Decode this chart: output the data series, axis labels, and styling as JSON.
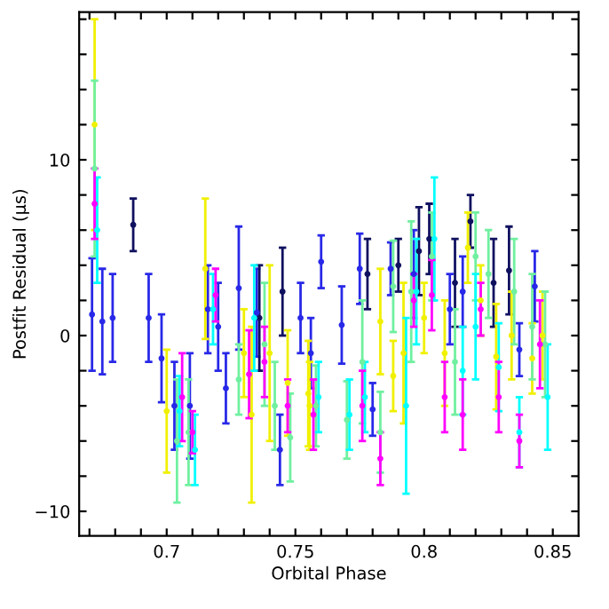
{
  "chart_data": {
    "type": "scatter",
    "xlabel": "Orbital Phase",
    "ylabel": "Postfit Residual (μs)",
    "xlim": [
      0.666,
      0.86
    ],
    "ylim": [
      -11.4,
      18.4
    ],
    "xticks": [
      {
        "value": 0.67,
        "label": null
      },
      {
        "value": 0.68,
        "label": null
      },
      {
        "value": 0.69,
        "label": null
      },
      0.7,
      {
        "value": 0.71,
        "label": null
      },
      {
        "value": 0.72,
        "label": null
      },
      {
        "value": 0.73,
        "label": null
      },
      {
        "value": 0.74,
        "label": null
      },
      0.75,
      {
        "value": 0.76,
        "label": null
      },
      {
        "value": 0.77,
        "label": null
      },
      {
        "value": 0.78,
        "label": null
      },
      {
        "value": 0.79,
        "label": null
      },
      0.8,
      {
        "value": 0.81,
        "label": null
      },
      {
        "value": 0.82,
        "label": null
      },
      {
        "value": 0.83,
        "label": null
      },
      {
        "value": 0.84,
        "label": null
      },
      0.85
    ],
    "yticks": [
      {
        "value": -10,
        "label": "−10"
      },
      {
        "value": -8,
        "label": null
      },
      {
        "value": -6,
        "label": null
      },
      {
        "value": -4,
        "label": null
      },
      {
        "value": -2,
        "label": null
      },
      0,
      {
        "value": 2,
        "label": null
      },
      {
        "value": 4,
        "label": null
      },
      {
        "value": 6,
        "label": null
      },
      {
        "value": 8,
        "label": null
      },
      10,
      {
        "value": 12,
        "label": null
      },
      {
        "value": 14,
        "label": null
      },
      {
        "value": 16,
        "label": null
      },
      {
        "value": 18,
        "label": null
      }
    ],
    "grid": false,
    "legend": false,
    "marker": "circle",
    "series": [
      {
        "color": "#2828e8",
        "x": [
          0.671,
          0.675,
          0.679,
          0.693,
          0.698,
          0.703,
          0.709,
          0.716,
          0.72,
          0.723,
          0.728,
          0.735,
          0.744,
          0.752,
          0.756,
          0.76,
          0.768,
          0.775,
          0.78,
          0.787,
          0.796,
          0.81,
          0.815,
          0.837,
          0.843
        ],
        "values": [
          1.2,
          0.8,
          1,
          1,
          -1.3,
          -4,
          -4,
          1.5,
          0.5,
          -3,
          2.7,
          1.3,
          -6.5,
          1,
          -1,
          4.2,
          0.6,
          3.8,
          -4.2,
          3.8,
          3.5,
          1.5,
          2.5,
          -0.8,
          2.8
        ],
        "errors": [
          3.2,
          3,
          2.5,
          2.5,
          2.5,
          2.5,
          3,
          2.5,
          2.5,
          2,
          3.5,
          2.5,
          2,
          2,
          2,
          1.5,
          2.2,
          2,
          1.5,
          1.5,
          2.5,
          2,
          2,
          1.5,
          2
        ]
      },
      {
        "color": "#101060",
        "x": [
          0.687,
          0.736,
          0.745,
          0.778,
          0.79,
          0.798,
          0.802,
          0.812,
          0.818,
          0.827,
          0.833
        ],
        "values": [
          6.3,
          1,
          2.5,
          3.5,
          4,
          4.8,
          5.5,
          3,
          6.5,
          3,
          3.7
        ],
        "errors": [
          1.5,
          3,
          2.5,
          2,
          1.5,
          2.5,
          2,
          2.5,
          1.5,
          2.5,
          2.5
        ]
      },
      {
        "color": "#f0f000",
        "x": [
          0.672,
          0.7,
          0.715,
          0.73,
          0.733,
          0.74,
          0.747,
          0.755,
          0.7555,
          0.783,
          0.788,
          0.792,
          0.8,
          0.808,
          0.817,
          0.822,
          0.828,
          0.834,
          0.842,
          0.846
        ],
        "values": [
          12,
          -4.3,
          3.8,
          -1,
          -4.5,
          -1,
          -2.7,
          -3.3,
          -4,
          0.8,
          -2.3,
          -1,
          1,
          -1,
          5,
          2,
          -1.2,
          0,
          -1.3,
          0
        ],
        "errors": [
          6,
          3.5,
          4,
          2.5,
          5,
          5,
          3,
          3,
          2.5,
          3,
          2,
          4,
          2,
          3,
          2,
          2,
          3,
          2.5,
          2,
          2.5
        ]
      },
      {
        "color": "#70f0a0",
        "x": [
          0.672,
          0.704,
          0.7085,
          0.728,
          0.738,
          0.742,
          0.748,
          0.758,
          0.77,
          0.776,
          0.783,
          0.788,
          0.795,
          0.803,
          0.812,
          0.82,
          0.825,
          0.835,
          0.842,
          0.847
        ],
        "values": [
          9.5,
          -6,
          -5.5,
          -2.5,
          -0.5,
          -4,
          -5.8,
          -4,
          -4.8,
          -1.5,
          -5.5,
          2.8,
          2.5,
          4.5,
          -1.5,
          4.5,
          3.5,
          2.5,
          0.5,
          -0.5
        ],
        "errors": [
          5,
          3.5,
          3,
          2,
          3.5,
          2.5,
          2.5,
          2.3,
          2.2,
          3.5,
          2.3,
          2.6,
          4,
          2.5,
          3,
          2.5,
          2.5,
          3,
          3,
          3
        ]
      },
      {
        "color": "#00ffff",
        "x": [
          0.673,
          0.705,
          0.711,
          0.718,
          0.734,
          0.759,
          0.771,
          0.777,
          0.793,
          0.797,
          0.804,
          0.815,
          0.82,
          0.829,
          0.837,
          0.848
        ],
        "values": [
          6,
          -4.3,
          -6.5,
          1.5,
          1,
          -3.5,
          -4.5,
          -3.5,
          -4,
          2.5,
          5.5,
          -2,
          0.5,
          -1.8,
          -5.5,
          -3.5
        ],
        "errors": [
          3,
          2,
          2,
          2,
          3,
          2,
          2,
          2,
          5,
          3,
          3.5,
          2.5,
          3,
          2.5,
          2,
          3
        ]
      },
      {
        "color": "#ff00ff",
        "x": [
          0.672,
          0.706,
          0.71,
          0.719,
          0.732,
          0.738,
          0.747,
          0.757,
          0.776,
          0.783,
          0.796,
          0.803,
          0.808,
          0.815,
          0.822,
          0.829,
          0.837,
          0.845
        ],
        "values": [
          7.5,
          -3.5,
          -5.5,
          2.3,
          -2.2,
          -1.5,
          -4,
          -4.5,
          -4,
          -7,
          2,
          2.3,
          -3.5,
          -4.5,
          1.5,
          -3.5,
          -6,
          -0.5
        ],
        "errors": [
          2,
          2.5,
          1.2,
          1.5,
          2.5,
          2,
          1.5,
          2,
          2,
          1.5,
          1.5,
          2,
          2,
          2,
          1.5,
          2,
          1.5,
          2.5
        ]
      }
    ]
  }
}
